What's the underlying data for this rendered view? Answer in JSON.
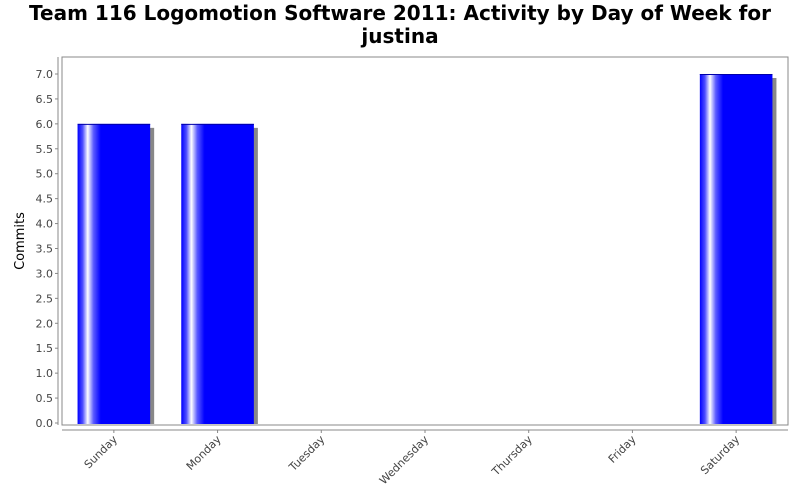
{
  "chart_data": {
    "type": "bar",
    "title": "Team 116 Logomotion Software 2011: Activity by Day of Week for justina",
    "xlabel": "",
    "ylabel": "Commits",
    "categories": [
      "Sunday",
      "Monday",
      "Tuesday",
      "Wednesday",
      "Thursday",
      "Friday",
      "Saturday"
    ],
    "values": [
      6,
      6,
      0,
      0,
      0,
      0,
      7
    ],
    "ylim": [
      0,
      7.0
    ],
    "yticks": [
      "0.0",
      "0.5",
      "1.0",
      "1.5",
      "2.0",
      "2.5",
      "3.0",
      "3.5",
      "4.0",
      "4.5",
      "5.0",
      "5.5",
      "6.0",
      "6.5",
      "7.0"
    ],
    "grid": false,
    "bar_color": "#0000ff"
  }
}
